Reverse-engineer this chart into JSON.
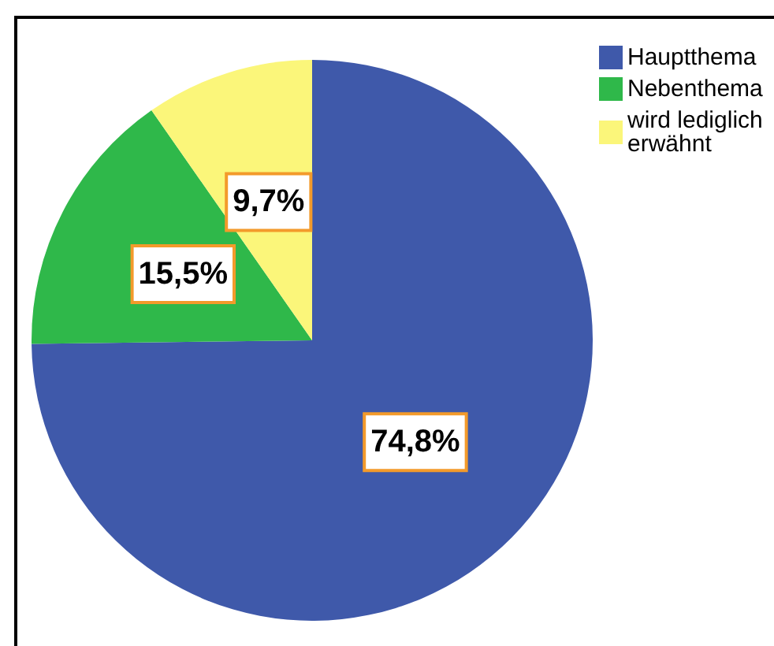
{
  "chart_data": {
    "type": "pie",
    "categories": [
      "Hauptthema",
      "Nebenthema",
      "wird lediglich erwähnt"
    ],
    "values": [
      74.8,
      15.5,
      9.7
    ],
    "colors": [
      "#3f59aa",
      "#2fb84a",
      "#fbf67a"
    ],
    "value_labels": [
      "74,8%",
      "15,5%",
      "9,7%"
    ],
    "legend": "top right"
  }
}
